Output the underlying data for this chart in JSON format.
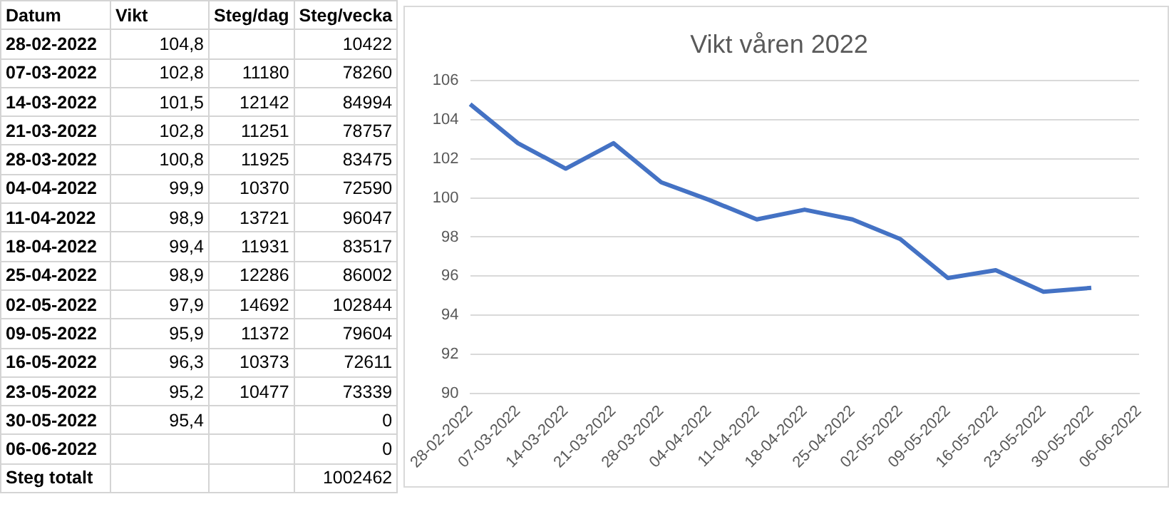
{
  "chart_data": [
    {
      "type": "other",
      "xlabel": "Datum",
      "categories": [
        "28-02-2022",
        "07-03-2022",
        "14-03-2022",
        "21-03-2022",
        "28-03-2022",
        "04-04-2022",
        "11-04-2022",
        "18-04-2022",
        "25-04-2022",
        "02-05-2022",
        "09-05-2022",
        "16-05-2022",
        "23-05-2022",
        "30-05-2022",
        "06-06-2022",
        "Steg totalt"
      ],
      "series": [
        {
          "name": "Vikt",
          "values": [
            104.8,
            102.8,
            101.5,
            102.8,
            100.8,
            99.9,
            98.9,
            99.4,
            98.9,
            97.9,
            95.9,
            96.3,
            95.2,
            95.4,
            null,
            null
          ],
          "value_labels": [
            "104,8",
            "102,8",
            "101,5",
            "102,8",
            "100,8",
            "99,9",
            "98,9",
            "99,4",
            "98,9",
            "97,9",
            "95,9",
            "96,3",
            "95,2",
            "95,4",
            null,
            null
          ]
        },
        {
          "name": "Steg/dag",
          "values": [
            null,
            11180,
            12142,
            11251,
            11925,
            10370,
            13721,
            11931,
            12286,
            14692,
            11372,
            10373,
            10477,
            null,
            null,
            null
          ],
          "value_labels": [
            null,
            "11180",
            "12142",
            "11251",
            "11925",
            "10370",
            "13721",
            "11931",
            "12286",
            "14692",
            "11372",
            "10373",
            "10477",
            null,
            null,
            null
          ]
        },
        {
          "name": "Steg/vecka",
          "values": [
            10422,
            78260,
            84994,
            78757,
            83475,
            72590,
            96047,
            83517,
            86002,
            102844,
            79604,
            72611,
            73339,
            0,
            0,
            1002462
          ],
          "value_labels": [
            "10422",
            "78260",
            "84994",
            "78757",
            "83475",
            "72590",
            "96047",
            "83517",
            "86002",
            "102844",
            "79604",
            "72611",
            "73339",
            "0",
            "0",
            "1002462"
          ]
        }
      ]
    },
    {
      "type": "line",
      "title": "Vikt våren 2022",
      "categories": [
        "28-02-2022",
        "07-03-2022",
        "14-03-2022",
        "21-03-2022",
        "28-03-2022",
        "04-04-2022",
        "11-04-2022",
        "18-04-2022",
        "25-04-2022",
        "02-05-2022",
        "09-05-2022",
        "16-05-2022",
        "23-05-2022",
        "30-05-2022",
        "06-06-2022"
      ],
      "series": [
        {
          "color": "#4472c4",
          "values": [
            104.8,
            102.8,
            101.5,
            102.8,
            100.8,
            99.9,
            98.9,
            99.4,
            98.9,
            97.9,
            95.9,
            96.3,
            95.2,
            95.4,
            null
          ]
        }
      ],
      "ylim": [
        90,
        106
      ],
      "yticks": [
        90,
        92,
        94,
        96,
        98,
        100,
        102,
        104,
        106
      ],
      "grid": "y"
    }
  ]
}
